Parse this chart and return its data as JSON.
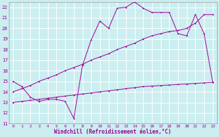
{
  "bg_color": "#cceef0",
  "grid_color": "#aadddd",
  "line_color": "#990099",
  "xlabel": "Windchill (Refroidissement éolien,°C)",
  "xlim": [
    -0.5,
    23.5
  ],
  "ylim": [
    11,
    22.5
  ],
  "yticks": [
    11,
    12,
    13,
    14,
    15,
    16,
    17,
    18,
    19,
    20,
    21,
    22
  ],
  "xticks": [
    0,
    1,
    2,
    3,
    4,
    5,
    6,
    7,
    8,
    9,
    10,
    11,
    12,
    13,
    14,
    15,
    16,
    17,
    18,
    19,
    20,
    21,
    22,
    23
  ],
  "line1_x": [
    0,
    1,
    2,
    3,
    4,
    5,
    6,
    7,
    8,
    9,
    10,
    11,
    12,
    13,
    14,
    15,
    16,
    17,
    18,
    19,
    20,
    21,
    22,
    23
  ],
  "line1_y": [
    13.0,
    13.1,
    13.2,
    13.3,
    13.4,
    13.5,
    13.6,
    13.7,
    13.8,
    13.9,
    14.0,
    14.1,
    14.2,
    14.3,
    14.4,
    14.5,
    14.55,
    14.6,
    14.65,
    14.7,
    14.75,
    14.8,
    14.85,
    14.9
  ],
  "line2_x": [
    0,
    1,
    2,
    3,
    4,
    5,
    6,
    7,
    8,
    9,
    10,
    11,
    12,
    13,
    14,
    15,
    16,
    17,
    18,
    19,
    20,
    21,
    22,
    23
  ],
  "line2_y": [
    14.0,
    14.3,
    14.6,
    15.0,
    15.3,
    15.6,
    16.0,
    16.3,
    16.6,
    17.0,
    17.3,
    17.6,
    18.0,
    18.3,
    18.6,
    19.0,
    19.3,
    19.5,
    19.7,
    19.8,
    20.0,
    20.5,
    21.3,
    21.3
  ],
  "line3_x": [
    0,
    1,
    2,
    3,
    4,
    5,
    6,
    7,
    8,
    9,
    10,
    11,
    12,
    13,
    14,
    15,
    16,
    17,
    18,
    19,
    20,
    21,
    22,
    23
  ],
  "line3_y": [
    15.0,
    14.5,
    13.5,
    13.1,
    13.3,
    13.3,
    13.1,
    11.5,
    16.5,
    18.9,
    20.7,
    20.0,
    21.9,
    22.0,
    22.5,
    21.9,
    21.5,
    21.5,
    21.5,
    19.5,
    19.3,
    21.3,
    19.5,
    14.9
  ]
}
